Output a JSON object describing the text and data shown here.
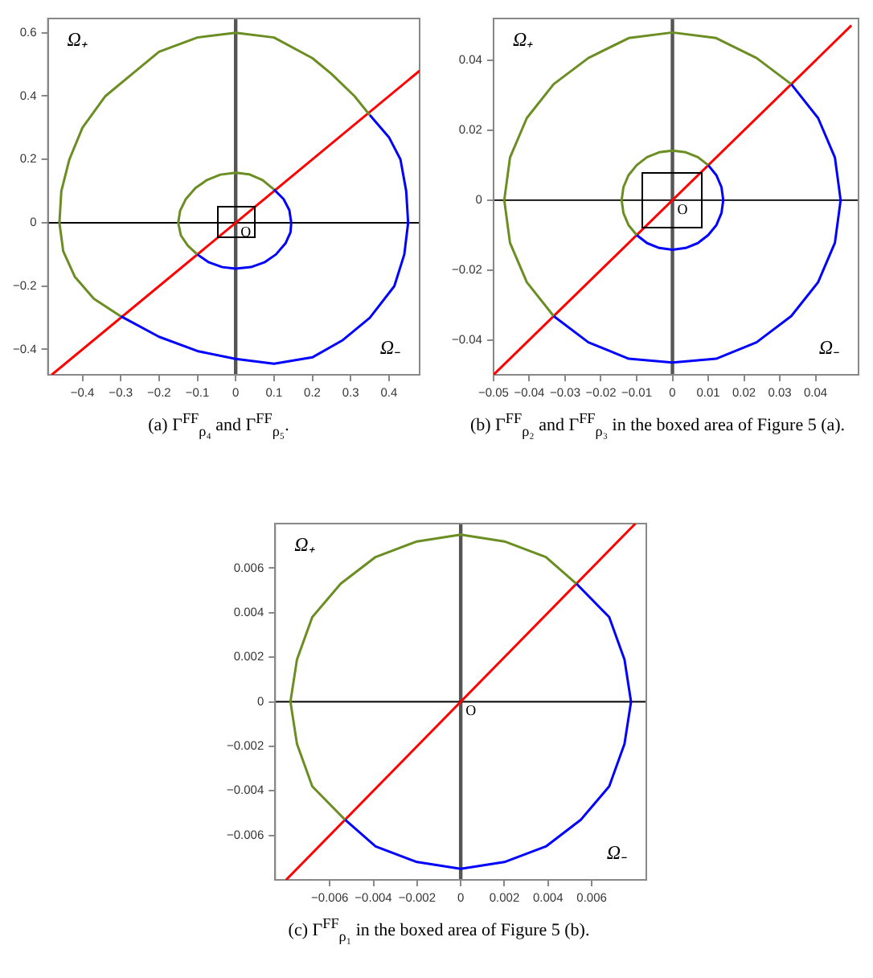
{
  "chart_data": [
    {
      "type": "line",
      "title": "(a) Γ$^{FF}$$_{ρ₄}$ and Γ$^{FF}$$_{ρ₅}$.",
      "xlim": [
        -0.49,
        0.48
      ],
      "ylim": [
        -0.48,
        0.645
      ],
      "xticks": [
        -0.4,
        -0.3,
        -0.2,
        -0.1,
        0,
        0.1,
        0.2,
        0.3,
        0.4
      ],
      "yticks": [
        -0.4,
        -0.2,
        0,
        0.2,
        0.4,
        0.6
      ],
      "grid": false,
      "legend": false,
      "marker": "none",
      "ref_lines": [
        {
          "axis": "x",
          "value": 0,
          "color": "#555555"
        },
        {
          "axis": "y",
          "value": 0,
          "color": "#000000"
        }
      ],
      "annotations": [
        "Ω₊",
        "Ω₋",
        "O"
      ],
      "series": [
        {
          "color": "#6b8e23",
          "x": [
            0.35,
            0.31,
            0.25,
            0.2,
            0.1,
            0,
            -0.1,
            -0.2,
            -0.27,
            -0.34,
            -0.4,
            -0.434,
            -0.455,
            -0.46,
            -0.45,
            -0.42,
            -0.37,
            -0.3
          ],
          "values": [
            0.34,
            0.4,
            0.47,
            0.52,
            0.585,
            0.6,
            0.585,
            0.54,
            0.47,
            0.4,
            0.3,
            0.2,
            0.1,
            0,
            -0.09,
            -0.17,
            -0.24,
            -0.295
          ]
        },
        {
          "color": "#0000ff",
          "x": [
            -0.3,
            -0.2,
            -0.1,
            0,
            0.1,
            0.2,
            0.28,
            0.35,
            0.414,
            0.44,
            0.45,
            0.445,
            0.43,
            0.4,
            0.35
          ],
          "values": [
            -0.295,
            -0.36,
            -0.405,
            -0.43,
            -0.445,
            -0.425,
            -0.37,
            -0.3,
            -0.2,
            -0.1,
            0,
            0.1,
            0.2,
            0.27,
            0.34
          ]
        },
        {
          "color": "#6b8e23",
          "x": [
            0.1,
            0.07,
            0.035,
            0,
            -0.04,
            -0.075,
            -0.105,
            -0.13,
            -0.145,
            -0.15,
            -0.143,
            -0.125,
            -0.1
          ],
          "values": [
            0.105,
            0.135,
            0.153,
            0.158,
            0.152,
            0.135,
            0.11,
            0.075,
            0.038,
            0,
            -0.04,
            -0.072,
            -0.1
          ]
        },
        {
          "color": "#0000ff",
          "x": [
            -0.1,
            -0.07,
            -0.035,
            0,
            0.04,
            0.075,
            0.105,
            0.13,
            0.143,
            0.145,
            0.14,
            0.125,
            0.1
          ],
          "values": [
            -0.1,
            -0.125,
            -0.14,
            -0.145,
            -0.14,
            -0.125,
            -0.1,
            -0.065,
            -0.03,
            0,
            0.04,
            0.075,
            0.105
          ]
        },
        {
          "color": "#ff0000",
          "x": [
            -0.48,
            0.48
          ],
          "values": [
            -0.48,
            0.48
          ]
        }
      ]
    },
    {
      "type": "line",
      "title": "(b) Γ$^{FF}$$_{ρ₂}$ and Γ$^{FF}$$_{ρ₃}$ in the boxed area of Figure 5 (a).",
      "xlim": [
        -0.05,
        0.052
      ],
      "ylim": [
        -0.05,
        0.052
      ],
      "xticks": [
        -0.05,
        -0.04,
        -0.03,
        -0.02,
        -0.01,
        0,
        0.01,
        0.02,
        0.03,
        0.04
      ],
      "yticks": [
        -0.04,
        -0.02,
        0,
        0.02,
        0.04
      ],
      "grid": false,
      "legend": false,
      "marker": "none",
      "ref_lines": [
        {
          "axis": "x",
          "value": 0,
          "color": "#555555"
        },
        {
          "axis": "y",
          "value": 0,
          "color": "#000000"
        }
      ],
      "annotations": [
        "Ω₊",
        "Ω₋",
        "O"
      ],
      "series": [
        {
          "color": "#6b8e23",
          "x": [
            0.0332,
            0.0235,
            0.0122,
            0,
            -0.0122,
            -0.0235,
            -0.0332,
            -0.0407,
            -0.0454,
            -0.047,
            -0.0454,
            -0.0407,
            -0.0332
          ],
          "values": [
            0.0332,
            0.0407,
            0.0464,
            0.048,
            0.0464,
            0.0407,
            0.0332,
            0.0235,
            0.0122,
            0,
            -0.0122,
            -0.0235,
            -0.0332
          ]
        },
        {
          "color": "#0000ff",
          "x": [
            -0.0332,
            -0.0235,
            -0.0122,
            0,
            0.0122,
            0.0235,
            0.0332,
            0.0407,
            0.0454,
            0.047,
            0.0454,
            0.0407,
            0.0332
          ],
          "values": [
            -0.0332,
            -0.0407,
            -0.0454,
            -0.0465,
            -0.0454,
            -0.0407,
            -0.0332,
            -0.0235,
            -0.0122,
            0,
            0.0122,
            0.0235,
            0.0332
          ]
        },
        {
          "color": "#6b8e23",
          "x": [
            0.01,
            0.0071,
            0.0037,
            0,
            -0.0037,
            -0.0071,
            -0.01,
            -0.0123,
            -0.0137,
            -0.0142,
            -0.0137,
            -0.0123,
            -0.01
          ],
          "values": [
            0.01,
            0.0123,
            0.0137,
            0.0142,
            0.0137,
            0.0123,
            0.01,
            0.0071,
            0.0037,
            0,
            -0.0037,
            -0.0071,
            -0.01
          ]
        },
        {
          "color": "#0000ff",
          "x": [
            -0.01,
            -0.0071,
            -0.0037,
            0,
            0.0037,
            0.0071,
            0.01,
            0.0123,
            0.0137,
            0.0142,
            0.0137,
            0.0123,
            0.01
          ],
          "values": [
            -0.01,
            -0.0123,
            -0.0137,
            -0.0142,
            -0.0137,
            -0.0123,
            -0.01,
            -0.0071,
            -0.0037,
            0,
            0.0037,
            0.0071,
            0.01
          ]
        },
        {
          "color": "#ff0000",
          "x": [
            -0.05,
            0.05
          ],
          "values": [
            -0.05,
            0.05
          ]
        }
      ]
    },
    {
      "type": "line",
      "title": "(c) Γ$^{FF}$$_{ρ₁}$ in the boxed area of Figure 5 (b).",
      "xlim": [
        -0.0085,
        0.0085
      ],
      "ylim": [
        -0.008,
        0.008
      ],
      "xticks": [
        -0.006,
        -0.004,
        -0.002,
        0,
        0.002,
        0.004,
        0.006
      ],
      "yticks": [
        -0.006,
        -0.004,
        -0.002,
        0,
        0.002,
        0.004,
        0.006
      ],
      "grid": false,
      "legend": false,
      "marker": "none",
      "ref_lines": [
        {
          "axis": "x",
          "value": 0,
          "color": "#555555"
        },
        {
          "axis": "y",
          "value": 0,
          "color": "#000000"
        }
      ],
      "annotations": [
        "Ω₊",
        "Ω₋",
        "O"
      ],
      "series": [
        {
          "color": "#6b8e23",
          "x": [
            0.0053,
            0.0039,
            0.002,
            0,
            -0.002,
            -0.0039,
            -0.0055,
            -0.0068,
            -0.0075,
            -0.0078,
            -0.0075,
            -0.0068,
            -0.0053
          ],
          "values": [
            0.0053,
            0.0065,
            0.0072,
            0.0075,
            0.0072,
            0.0065,
            0.0053,
            0.0038,
            0.0019,
            0,
            -0.0019,
            -0.0038,
            -0.0053
          ]
        },
        {
          "color": "#0000ff",
          "x": [
            -0.0053,
            -0.0039,
            -0.002,
            0,
            0.002,
            0.0039,
            0.0055,
            0.0068,
            0.0075,
            0.0078,
            0.0075,
            0.0068,
            0.0053
          ],
          "values": [
            -0.0053,
            -0.0065,
            -0.0072,
            -0.0075,
            -0.0072,
            -0.0065,
            -0.0053,
            -0.0038,
            -0.0019,
            0,
            0.0019,
            0.0038,
            0.0053
          ]
        },
        {
          "color": "#ff0000",
          "x": [
            -0.008,
            0.008
          ],
          "values": [
            -0.008,
            0.008
          ]
        }
      ]
    }
  ]
}
